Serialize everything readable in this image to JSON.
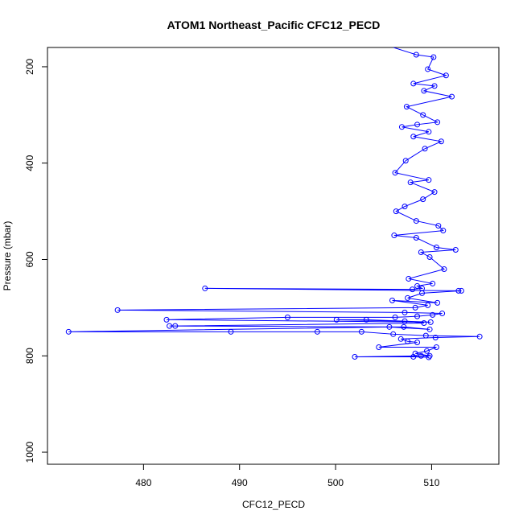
{
  "chart_data": {
    "type": "scatter",
    "title": "ATOM1 Northeast_Pacific CFC12_PECD",
    "xlabel": "CFC12_PECD",
    "ylabel": "Pressure (mbar)",
    "xlim": [
      470,
      517
    ],
    "ylim": [
      1025,
      160
    ],
    "y_reversed": true,
    "x_ticks": [
      480,
      490,
      500,
      510
    ],
    "y_ticks": [
      200,
      400,
      600,
      800,
      1000
    ],
    "series": [
      {
        "color": "#0000ff",
        "marker": "open-circle",
        "connect_lines": true,
        "x": [
          508.4,
          510.2,
          509.6,
          511.5,
          508.1,
          510.3,
          509.2,
          512.1,
          507.4,
          509.1,
          510.6,
          508.5,
          506.9,
          509.7,
          508.1,
          511.0,
          509.3,
          507.3,
          506.2,
          509.7,
          507.8,
          510.3,
          509.1,
          507.2,
          506.3,
          508.4,
          510.7,
          511.2,
          506.1,
          508.4,
          510.5,
          512.5,
          508.9,
          509.8,
          511.3,
          507.6,
          510.1,
          508.5,
          509.0,
          508.0,
          486.4,
          512.8,
          513.1,
          509.0,
          507.5,
          510.6,
          505.9,
          509.6,
          508.3,
          477.3,
          507.2,
          511.1,
          510.1,
          508.5,
          506.2,
          495.0,
          482.4,
          509.9,
          503.2,
          500.1,
          507.2,
          509.2,
          483.3,
          482.7,
          507.1,
          509.8,
          505.6,
          472.2,
          489.1,
          498.1,
          502.7,
          506.0,
          509.4,
          515.0,
          510.4,
          506.8,
          507.5,
          508.5,
          504.5,
          510.5,
          509.5,
          508.3,
          509.8,
          508.9,
          502.0,
          508.1,
          509.7
        ],
        "y": [
          175,
          180,
          205,
          218,
          235,
          240,
          250,
          262,
          283,
          300,
          315,
          320,
          325,
          335,
          345,
          355,
          370,
          395,
          420,
          435,
          440,
          460,
          475,
          490,
          500,
          520,
          530,
          540,
          550,
          555,
          575,
          580,
          585,
          595,
          620,
          640,
          650,
          655,
          660,
          662,
          660,
          665,
          665,
          670,
          680,
          690,
          685,
          695,
          700,
          705,
          710,
          712,
          715,
          718,
          720,
          720,
          725,
          730,
          725,
          725,
          728,
          732,
          738,
          738,
          740,
          745,
          740,
          750,
          750,
          750,
          750,
          755,
          758,
          760,
          762,
          765,
          770,
          772,
          782,
          782,
          790,
          795,
          800,
          800,
          802,
          802,
          803
        ]
      }
    ]
  }
}
